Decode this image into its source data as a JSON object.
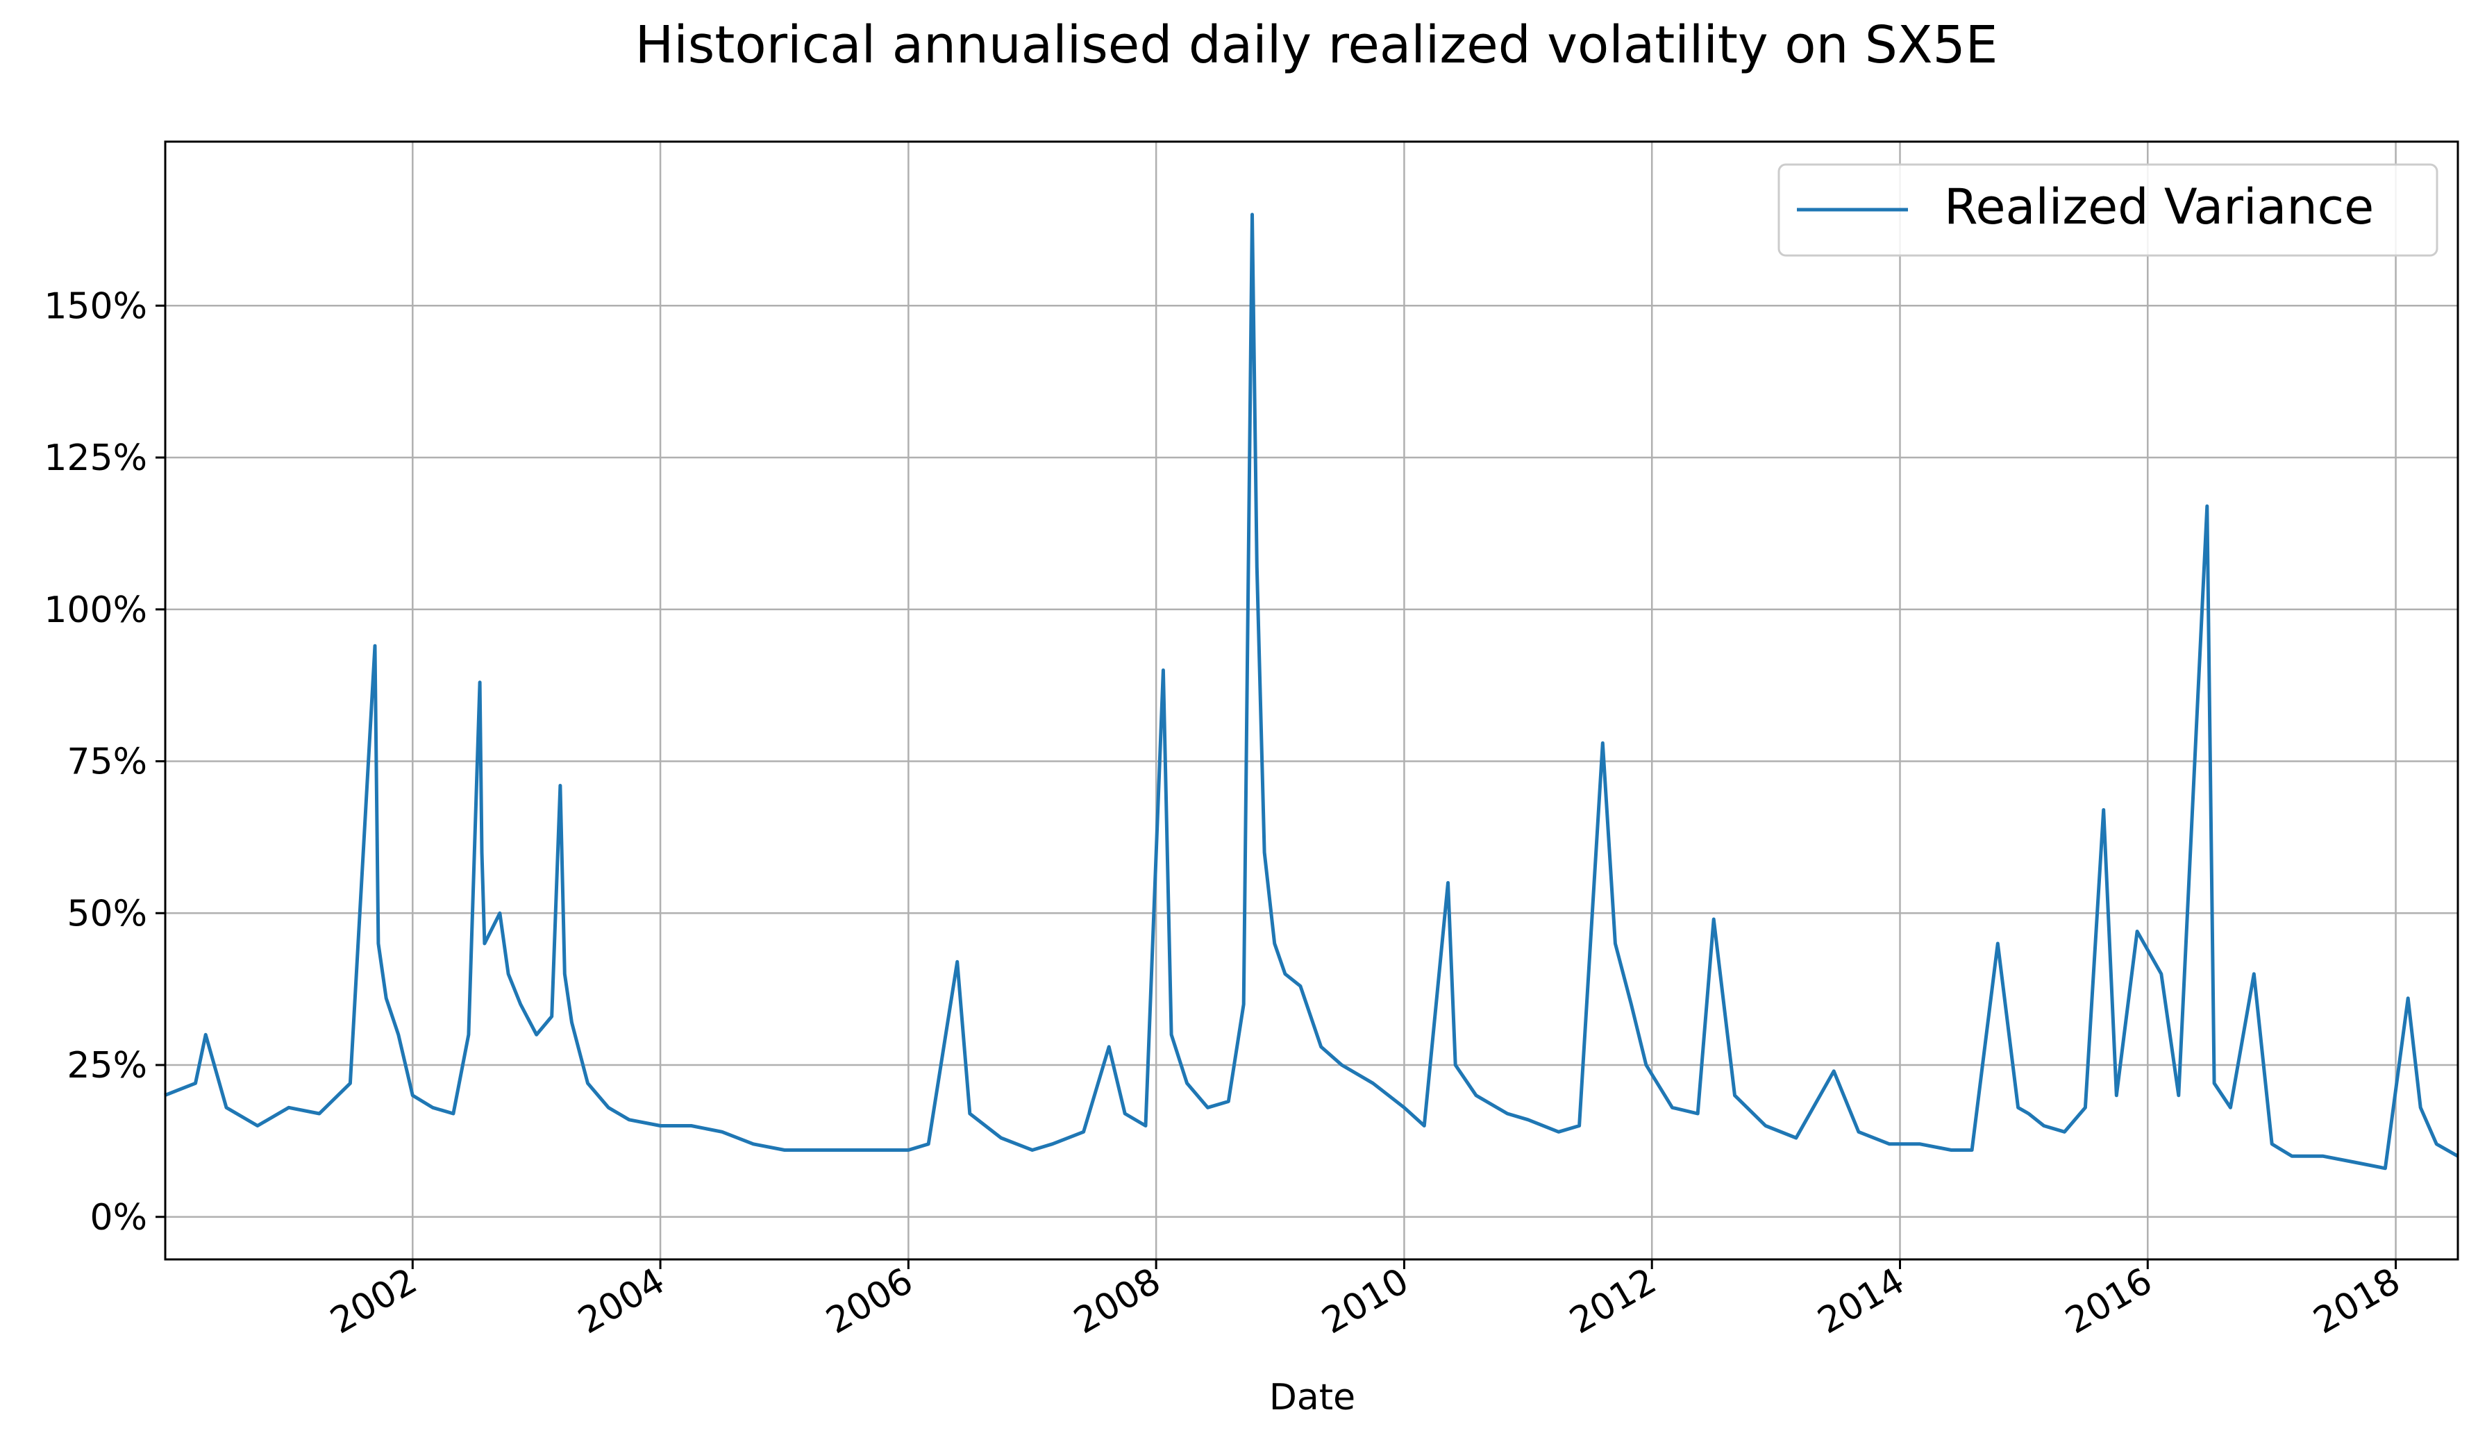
{
  "chart_data": {
    "type": "line",
    "title": "Historical annualised daily realized volatility on SX5E",
    "xlabel": "Date",
    "ylabel": "",
    "x_range": [
      "2000-01-03",
      "2018-07-03"
    ],
    "ylim": [
      -7,
      177
    ],
    "grid": true,
    "legend_position": "top-right",
    "x_ticks": [
      "2002",
      "2004",
      "2006",
      "2008",
      "2010",
      "2012",
      "2014",
      "2016",
      "2018"
    ],
    "y_ticks": [
      0,
      25,
      50,
      75,
      100,
      125,
      150
    ],
    "y_tick_labels": [
      "0%",
      "25%",
      "50%",
      "75%",
      "100%",
      "125%",
      "150%"
    ],
    "series": [
      {
        "name": "Realized Variance",
        "color": "#1f77b4",
        "x": [
          "2000-01-01",
          "2000-04-01",
          "2000-05-01",
          "2000-07-01",
          "2000-10-01",
          "2001-01-01",
          "2001-04-01",
          "2001-07-01",
          "2001-09-12",
          "2001-09-22",
          "2001-10-15",
          "2001-11-20",
          "2002-01-01",
          "2002-03-01",
          "2002-05-01",
          "2002-06-15",
          "2002-07-18",
          "2002-07-24",
          "2002-08-01",
          "2002-09-15",
          "2002-10-10",
          "2002-11-15",
          "2003-01-01",
          "2003-02-15",
          "2003-03-12",
          "2003-03-25",
          "2003-04-15",
          "2003-06-01",
          "2003-08-01",
          "2003-10-01",
          "2004-01-01",
          "2004-04-01",
          "2004-07-01",
          "2004-10-01",
          "2005-01-01",
          "2005-04-01",
          "2005-07-01",
          "2005-10-01",
          "2006-01-01",
          "2006-03-01",
          "2006-05-25",
          "2006-07-01",
          "2006-10-01",
          "2007-01-01",
          "2007-03-01",
          "2007-06-01",
          "2007-08-15",
          "2007-10-01",
          "2007-12-01",
          "2008-01-22",
          "2008-02-15",
          "2008-04-01",
          "2008-06-01",
          "2008-08-01",
          "2008-09-15",
          "2008-10-10",
          "2008-10-24",
          "2008-11-15",
          "2008-12-15",
          "2009-01-15",
          "2009-03-01",
          "2009-05-01",
          "2009-07-01",
          "2009-10-01",
          "2010-01-01",
          "2010-03-01",
          "2010-05-10",
          "2010-06-01",
          "2010-08-01",
          "2010-11-01",
          "2011-01-01",
          "2011-04-01",
          "2011-06-01",
          "2011-08-09",
          "2011-09-15",
          "2011-11-01",
          "2011-12-15",
          "2012-03-01",
          "2012-05-15",
          "2012-07-01",
          "2012-09-01",
          "2012-12-01",
          "2013-03-01",
          "2013-06-20",
          "2013-09-01",
          "2013-12-01",
          "2014-03-01",
          "2014-06-01",
          "2014-08-01",
          "2014-10-16",
          "2014-12-15",
          "2015-01-15",
          "2015-03-01",
          "2015-05-01",
          "2015-07-01",
          "2015-08-24",
          "2015-10-01",
          "2015-12-01",
          "2016-02-10",
          "2016-04-01",
          "2016-06-24",
          "2016-07-15",
          "2016-09-01",
          "2016-11-09",
          "2017-01-01",
          "2017-03-01",
          "2017-06-01",
          "2017-09-01",
          "2017-12-01",
          "2018-02-06",
          "2018-03-15",
          "2018-05-01",
          "2018-07-03"
        ],
        "values": [
          20,
          22,
          30,
          18,
          15,
          18,
          17,
          22,
          94,
          45,
          36,
          30,
          20,
          18,
          17,
          30,
          88,
          60,
          45,
          50,
          40,
          35,
          30,
          33,
          71,
          40,
          32,
          22,
          18,
          16,
          15,
          15,
          14,
          12,
          11,
          11,
          11,
          11,
          11,
          12,
          42,
          17,
          13,
          11,
          12,
          14,
          28,
          17,
          15,
          90,
          30,
          22,
          18,
          19,
          35,
          165,
          107,
          60,
          45,
          40,
          38,
          28,
          25,
          22,
          18,
          15,
          55,
          25,
          20,
          17,
          16,
          14,
          15,
          78,
          45,
          35,
          25,
          18,
          17,
          49,
          20,
          15,
          13,
          24,
          14,
          12,
          12,
          11,
          11,
          45,
          18,
          17,
          15,
          14,
          18,
          67,
          20,
          47,
          40,
          20,
          117,
          22,
          18,
          40,
          12,
          10,
          10,
          9,
          8,
          36,
          18,
          12,
          10
        ]
      }
    ]
  }
}
